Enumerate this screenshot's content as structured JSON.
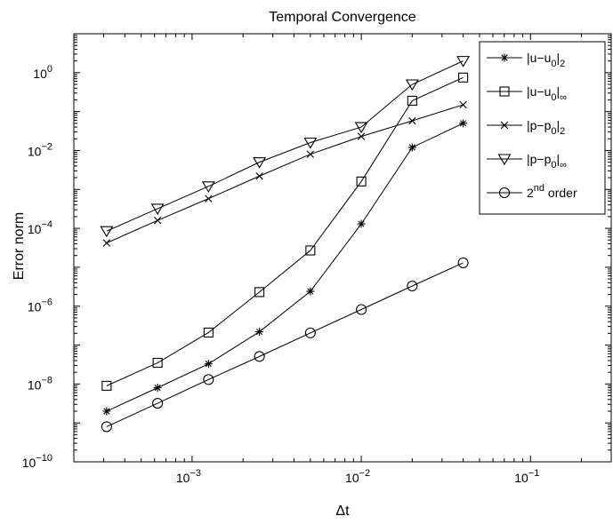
{
  "chart_data": {
    "type": "line",
    "title": "Temporal Convergence",
    "xlabel": "Δt",
    "ylabel": "Error norm",
    "x_scale": "log",
    "y_scale": "log",
    "xlim": [
      0.0002,
      0.3
    ],
    "ylim": [
      1e-10,
      10
    ],
    "grid": false,
    "legend_position": "top-right",
    "x": [
      0.0003125,
      0.000625,
      0.00125,
      0.0025,
      0.005,
      0.01,
      0.02,
      0.04
    ],
    "x_ticks": [
      {
        "value": 0.001,
        "base": "10",
        "exp": "−3"
      },
      {
        "value": 0.01,
        "base": "10",
        "exp": "−2"
      },
      {
        "value": 0.1,
        "base": "10",
        "exp": "−1"
      }
    ],
    "y_ticks": [
      {
        "value": 1,
        "base": "10",
        "exp": "0"
      },
      {
        "value": 0.01,
        "base": "10",
        "exp": "−2"
      },
      {
        "value": 0.0001,
        "base": "10",
        "exp": "−4"
      },
      {
        "value": 1e-06,
        "base": "10",
        "exp": "−6"
      },
      {
        "value": 1e-08,
        "base": "10",
        "exp": "−8"
      },
      {
        "value": 1e-10,
        "base": "10",
        "exp": "−10"
      }
    ],
    "series": [
      {
        "marker": "star",
        "legend": {
          "main": "|u−u",
          "sub": "0",
          "after": "|",
          "sub2": "2",
          "sup": ""
        },
        "values": [
          2e-09,
          8e-09,
          3.3e-08,
          2.2e-07,
          2.4e-06,
          0.00013,
          0.012,
          0.05
        ]
      },
      {
        "marker": "square",
        "legend": {
          "main": "|u−u",
          "sub": "0",
          "after": "|",
          "sub2": "∞",
          "sup": ""
        },
        "values": [
          9e-09,
          3.5e-08,
          2.1e-07,
          2.3e-06,
          2.7e-05,
          0.0016,
          0.19,
          0.75
        ]
      },
      {
        "marker": "x",
        "legend": {
          "main": "|p−p",
          "sub": "0",
          "after": "|",
          "sub2": "2",
          "sup": ""
        },
        "values": [
          4.2e-05,
          0.00016,
          0.00058,
          0.0022,
          0.008,
          0.023,
          0.058,
          0.15
        ]
      },
      {
        "marker": "triangle",
        "legend": {
          "main": "|p−p",
          "sub": "0",
          "after": "|",
          "sub2": "∞",
          "sup": ""
        },
        "values": [
          8.5e-05,
          0.00032,
          0.0012,
          0.005,
          0.016,
          0.04,
          0.5,
          2.0
        ]
      },
      {
        "marker": "circle",
        "legend": {
          "main": "2",
          "sub": "",
          "after": " order",
          "sub2": "",
          "sup": "nd"
        },
        "values": [
          8e-10,
          3.2e-09,
          1.3e-08,
          5.1e-08,
          2.05e-07,
          8.2e-07,
          3.3e-06,
          1.3e-05
        ]
      }
    ]
  }
}
